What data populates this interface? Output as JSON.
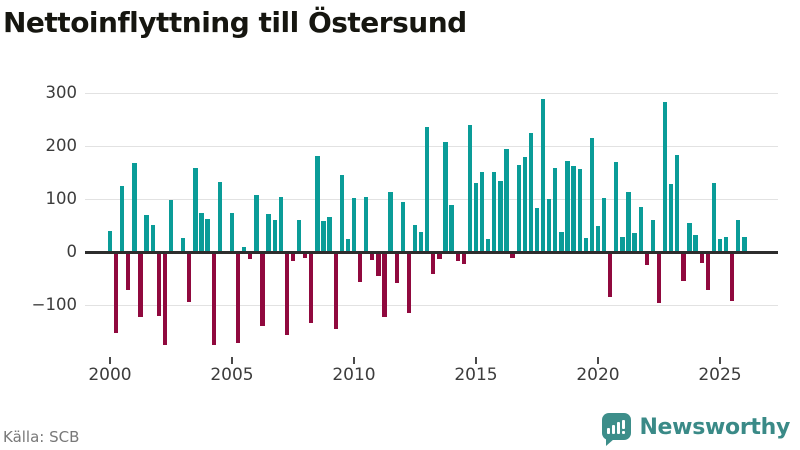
{
  "title": "Nettoinflyttning till Östersund",
  "source": "Källa: SCB",
  "branding": {
    "name": "Newsworthy",
    "icon": "newsworthy-speech-bubble-bar-chart-icon",
    "color": "#3a8a87"
  },
  "chart_data": {
    "type": "bar",
    "title": "Nettoinflyttning till Östersund",
    "frequency": "quarterly",
    "start_period": "2000Q1",
    "xlabel": "",
    "ylabel": "",
    "ylim": [
      -185,
      315
    ],
    "grid": true,
    "legend": "none",
    "positive_color": "#0a9c98",
    "negative_color": "#90093e",
    "y_ticks": [
      300,
      200,
      100,
      0,
      -100
    ],
    "y_tick_labels": [
      "300",
      "200",
      "100",
      "0",
      "−100"
    ],
    "x_tick_labels": [
      "2000",
      "2005",
      "2010",
      "2015",
      "2020",
      "2025"
    ],
    "x_tick_bar_indices": [
      0,
      20,
      40,
      60,
      80,
      100
    ],
    "values": [
      37,
      -150,
      122,
      -69,
      166,
      -119,
      67,
      50,
      -118,
      -173,
      97,
      0,
      24,
      -91,
      156,
      72,
      60,
      -173,
      131,
      0,
      72,
      -169,
      8,
      -11,
      106,
      -137,
      70,
      58,
      102,
      -154,
      -14,
      58,
      -9,
      -132,
      180,
      56,
      65,
      -143,
      143,
      22,
      100,
      -53,
      101,
      -13,
      -43,
      -120,
      112,
      -55,
      93,
      -112,
      50,
      35,
      234,
      -39,
      -11,
      206,
      87,
      -15,
      -20,
      238,
      129,
      150,
      22,
      150,
      132,
      192,
      -8,
      162,
      177,
      222,
      81,
      286,
      99,
      157,
      36,
      169,
      160,
      155,
      25,
      213,
      48,
      100,
      -82,
      168,
      27,
      111,
      34,
      83,
      -21,
      58,
      -93,
      281,
      127,
      182,
      -51,
      53,
      30,
      -18,
      -69,
      129,
      23,
      26,
      -90,
      58,
      26
    ]
  }
}
